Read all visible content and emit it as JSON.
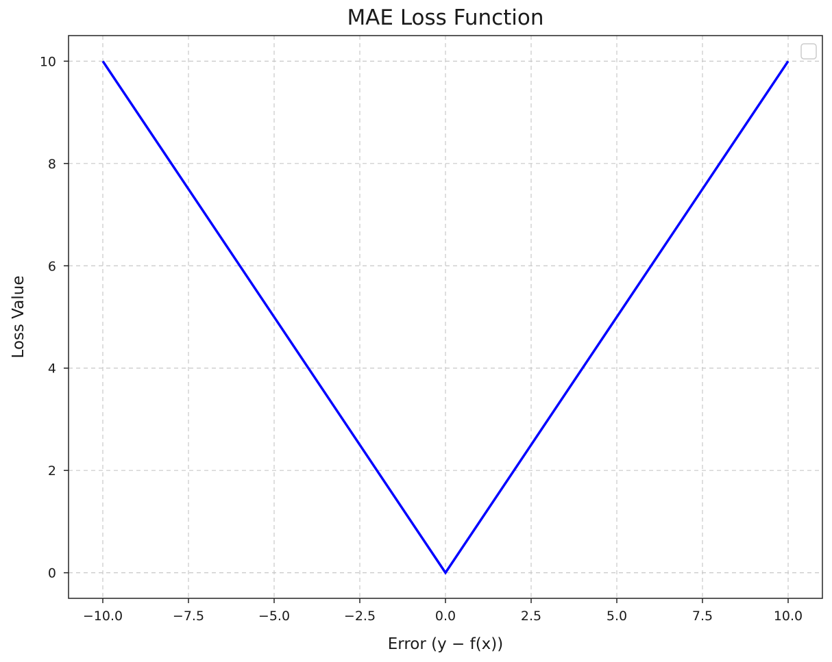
{
  "chart_data": {
    "type": "line",
    "title": "MAE Loss Function",
    "xlabel": "Error (y − f(x))",
    "ylabel": "Loss Value",
    "xlim": [
      -11,
      11
    ],
    "ylim": [
      -0.5,
      10.5
    ],
    "xticks": [
      -10.0,
      -7.5,
      -5.0,
      -2.5,
      0.0,
      2.5,
      5.0,
      7.5,
      10.0
    ],
    "xtick_labels": [
      "−10.0",
      "−7.5",
      "−5.0",
      "−2.5",
      "0.0",
      "2.5",
      "5.0",
      "7.5",
      "10.0"
    ],
    "yticks": [
      0,
      2,
      4,
      6,
      8,
      10
    ],
    "ytick_labels": [
      "0",
      "2",
      "4",
      "6",
      "8",
      "10"
    ],
    "grid": true,
    "grid_style": "dashed",
    "legend": "top-right",
    "series": [
      {
        "color": "#0000ff",
        "x": [
          -10,
          0,
          10
        ],
        "y": [
          10,
          0,
          10
        ]
      }
    ]
  }
}
